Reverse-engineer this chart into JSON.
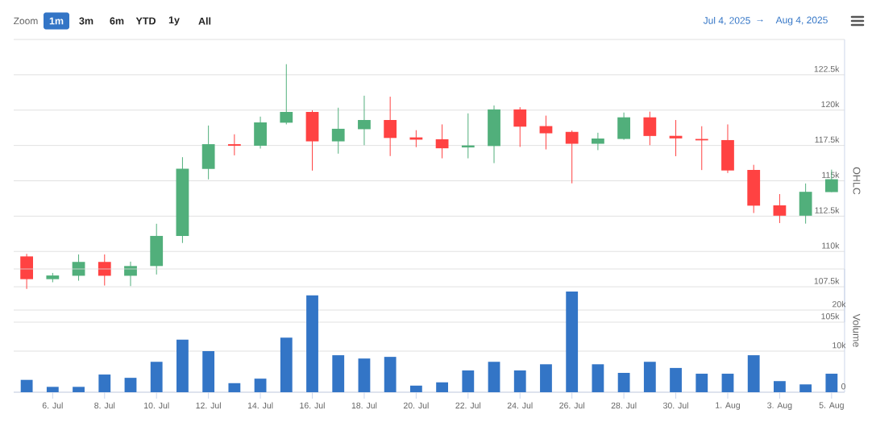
{
  "chart_data": [
    {
      "type": "candlestick",
      "annotations": [
        "Zoom",
        "1m",
        "3m",
        "6m",
        "YTD",
        "1y",
        "All",
        "Jul 4, 2025",
        "→",
        "Aug 4, 2025"
      ],
      "x": [
        "2025-07-05",
        "2025-07-06",
        "2025-07-07",
        "2025-07-08",
        "2025-07-09",
        "2025-07-10",
        "2025-07-11",
        "2025-07-12",
        "2025-07-13",
        "2025-07-14",
        "2025-07-15",
        "2025-07-16",
        "2025-07-17",
        "2025-07-18",
        "2025-07-19",
        "2025-07-20",
        "2025-07-21",
        "2025-07-22",
        "2025-07-23",
        "2025-07-24",
        "2025-07-25",
        "2025-07-26",
        "2025-07-27",
        "2025-07-28",
        "2025-07-29",
        "2025-07-30",
        "2025-07-31",
        "2025-08-01",
        "2025-08-02",
        "2025-08-03",
        "2025-08-04",
        "2025-08-05"
      ],
      "ohlc": [
        [
          109650,
          109830,
          107350,
          108040
        ],
        [
          108040,
          108480,
          107820,
          108300
        ],
        [
          108280,
          109790,
          107930,
          109260
        ],
        [
          109260,
          109790,
          107590,
          108280
        ],
        [
          108280,
          109280,
          107550,
          108970
        ],
        [
          108970,
          111960,
          108370,
          111100
        ],
        [
          111100,
          116670,
          110600,
          115860
        ],
        [
          115840,
          118910,
          115100,
          117590
        ],
        [
          117590,
          118290,
          116800,
          117480
        ],
        [
          117480,
          119540,
          117280,
          119130
        ],
        [
          119110,
          123250,
          118990,
          119870
        ],
        [
          119870,
          119990,
          115720,
          117790
        ],
        [
          117790,
          120170,
          116920,
          118680
        ],
        [
          118650,
          121020,
          117520,
          119300
        ],
        [
          119300,
          120950,
          116750,
          118030
        ],
        [
          118070,
          118580,
          117380,
          117910
        ],
        [
          117940,
          118990,
          116590,
          117300
        ],
        [
          117360,
          119770,
          116590,
          117500
        ],
        [
          117460,
          120330,
          116250,
          120050
        ],
        [
          120050,
          120210,
          117400,
          118830
        ],
        [
          118870,
          119610,
          117220,
          118360
        ],
        [
          118460,
          118560,
          114820,
          117620
        ],
        [
          117620,
          118400,
          117170,
          117990
        ],
        [
          117960,
          119830,
          117900,
          119490
        ],
        [
          119490,
          119890,
          117520,
          118170
        ],
        [
          118180,
          119300,
          116740,
          118000
        ],
        [
          117960,
          118860,
          115760,
          117860
        ],
        [
          117880,
          118990,
          115550,
          115730
        ],
        [
          115770,
          116130,
          112720,
          113240
        ],
        [
          113260,
          114060,
          112010,
          112530
        ],
        [
          112530,
          114810,
          111970,
          114220
        ],
        [
          114200,
          115790,
          114200,
          115110
        ]
      ],
      "colors": [
        "#ff4242",
        "#51af7b",
        "#51af7b",
        "#ff4242",
        "#51af7b",
        "#51af7b",
        "#51af7b",
        "#51af7b",
        "#ff4242",
        "#51af7b",
        "#51af7b",
        "#ff4242",
        "#51af7b",
        "#51af7b",
        "#ff4242",
        "#ff4242",
        "#ff4242",
        "#51af7b",
        "#51af7b",
        "#ff4242",
        "#ff4242",
        "#ff4242",
        "#51af7b",
        "#51af7b",
        "#ff4242",
        "#ff4242",
        "#ff4242",
        "#ff4242",
        "#ff4242",
        "#ff4242",
        "#51af7b",
        "#51af7b"
      ],
      "xlim": [
        "2025-07-04T12:00",
        "2025-08-05T12:00"
      ],
      "ylim": [
        105000,
        125000
      ],
      "yticks": [
        {
          "value": 105000,
          "label": "105k"
        },
        {
          "value": 107500,
          "label": "107.5k"
        },
        {
          "value": 110000,
          "label": "110k"
        },
        {
          "value": 112500,
          "label": "112.5k"
        },
        {
          "value": 115000,
          "label": "115k"
        },
        {
          "value": 117500,
          "label": "117.5k"
        },
        {
          "value": 120000,
          "label": "120k"
        },
        {
          "value": 122500,
          "label": "122.5k"
        },
        {
          "value": 125000,
          "label": null
        }
      ],
      "ylabel": "OHLC",
      "grid": "y",
      "tick_labels": "y"
    },
    {
      "type": "bar",
      "x": [
        "2025-07-05",
        "2025-07-06",
        "2025-07-07",
        "2025-07-08",
        "2025-07-09",
        "2025-07-10",
        "2025-07-11",
        "2025-07-12",
        "2025-07-13",
        "2025-07-14",
        "2025-07-15",
        "2025-07-16",
        "2025-07-17",
        "2025-07-18",
        "2025-07-19",
        "2025-07-20",
        "2025-07-21",
        "2025-07-22",
        "2025-07-23",
        "2025-07-24",
        "2025-07-25",
        "2025-07-26",
        "2025-07-27",
        "2025-07-28",
        "2025-07-29",
        "2025-07-30",
        "2025-07-31",
        "2025-08-01",
        "2025-08-02",
        "2025-08-03",
        "2025-08-04",
        "2025-08-05"
      ],
      "values": [
        3000,
        1300,
        1300,
        4300,
        3500,
        7400,
        12800,
        10000,
        2200,
        3300,
        13300,
        23600,
        9000,
        8200,
        8600,
        1600,
        2400,
        5300,
        7400,
        5300,
        6800,
        24500,
        6800,
        4700,
        7400,
        5900,
        4500,
        4500,
        9000,
        2700,
        1900,
        4500
      ],
      "color": "#3375c6",
      "xlim": [
        "2025-07-04T12:00",
        "2025-08-05T12:00"
      ],
      "xticks": [
        {
          "value": "2025-07-06",
          "label": "6. Jul"
        },
        {
          "value": "2025-07-08",
          "label": "8. Jul"
        },
        {
          "value": "2025-07-10",
          "label": "10. Jul"
        },
        {
          "value": "2025-07-12",
          "label": "12. Jul"
        },
        {
          "value": "2025-07-14",
          "label": "14. Jul"
        },
        {
          "value": "2025-07-16",
          "label": "16. Jul"
        },
        {
          "value": "2025-07-18",
          "label": "18. Jul"
        },
        {
          "value": "2025-07-20",
          "label": "20. Jul"
        },
        {
          "value": "2025-07-22",
          "label": "22. Jul"
        },
        {
          "value": "2025-07-24",
          "label": "24. Jul"
        },
        {
          "value": "2025-07-26",
          "label": "26. Jul"
        },
        {
          "value": "2025-07-28",
          "label": "28. Jul"
        },
        {
          "value": "2025-07-30",
          "label": "30. Jul"
        },
        {
          "value": "2025-08-01",
          "label": "1. Aug"
        },
        {
          "value": "2025-08-03",
          "label": "3. Aug"
        },
        {
          "value": "2025-08-05",
          "label": "5. Aug"
        }
      ],
      "ylim": [
        0,
        30000
      ],
      "yticks": [
        0,
        {
          "value": 10000,
          "label": "10k"
        },
        {
          "value": 20000,
          "label": "20k"
        },
        {
          "value": 30000,
          "label": null
        }
      ],
      "ylabel": "Volume",
      "grid": "y"
    }
  ]
}
